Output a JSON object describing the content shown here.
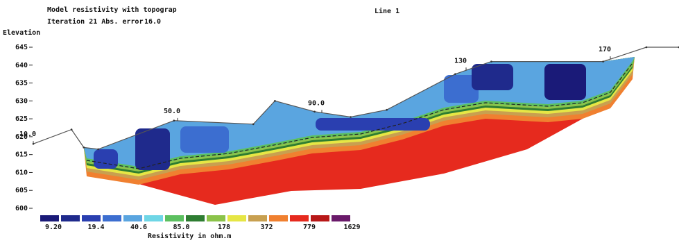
{
  "chart_data": {
    "type": "resistivity-section",
    "title": "Model resistivity with topograp",
    "subtitle": "Iteration 21 Abs. error",
    "abs_error": {
      "value": 16,
      "label": "16.0"
    },
    "line_label": "Line 1",
    "ylabel": "Elevation",
    "ylim": [
      600,
      645
    ],
    "yticks": [
      600,
      605,
      610,
      615,
      620,
      625,
      630,
      635,
      640,
      645
    ],
    "topography": {
      "x": [
        10,
        20.6,
        24,
        28,
        49,
        71,
        77,
        88,
        98,
        108,
        127,
        137,
        168,
        180,
        189
      ],
      "y": [
        618,
        622,
        617,
        616.5,
        624.5,
        623.5,
        630,
        627,
        625.5,
        627.5,
        637.5,
        641,
        641,
        645,
        645
      ]
    },
    "distance_labels": [
      {
        "value": 10,
        "label": "10.0"
      },
      {
        "value": 50,
        "label": "50.0"
      },
      {
        "value": 90,
        "label": "90.0"
      },
      {
        "value": 130,
        "label": "130"
      },
      {
        "value": 170,
        "label": "170"
      }
    ],
    "colorbar": {
      "title": "Resistivity in ohm.m",
      "colors": [
        "#1a1a78",
        "#1f2a8c",
        "#2a3fb0",
        "#3c6ed0",
        "#5aa5e0",
        "#6fd6e6",
        "#5cc060",
        "#2e7d32",
        "#8bc34a",
        "#e6e645",
        "#c8a050",
        "#f08030",
        "#e62a1e",
        "#b81818",
        "#6a1a6a"
      ],
      "labels": [
        {
          "value": 9.2,
          "label": "9.20"
        },
        {
          "value": 19.4,
          "label": "19.4"
        },
        {
          "value": 40.6,
          "label": "40.6"
        },
        {
          "value": 85,
          "label": "85.0"
        },
        {
          "value": 178,
          "label": "178"
        },
        {
          "value": 372,
          "label": "372"
        },
        {
          "value": 779,
          "label": "779"
        },
        {
          "value": 1629,
          "label": "1629"
        }
      ]
    }
  }
}
